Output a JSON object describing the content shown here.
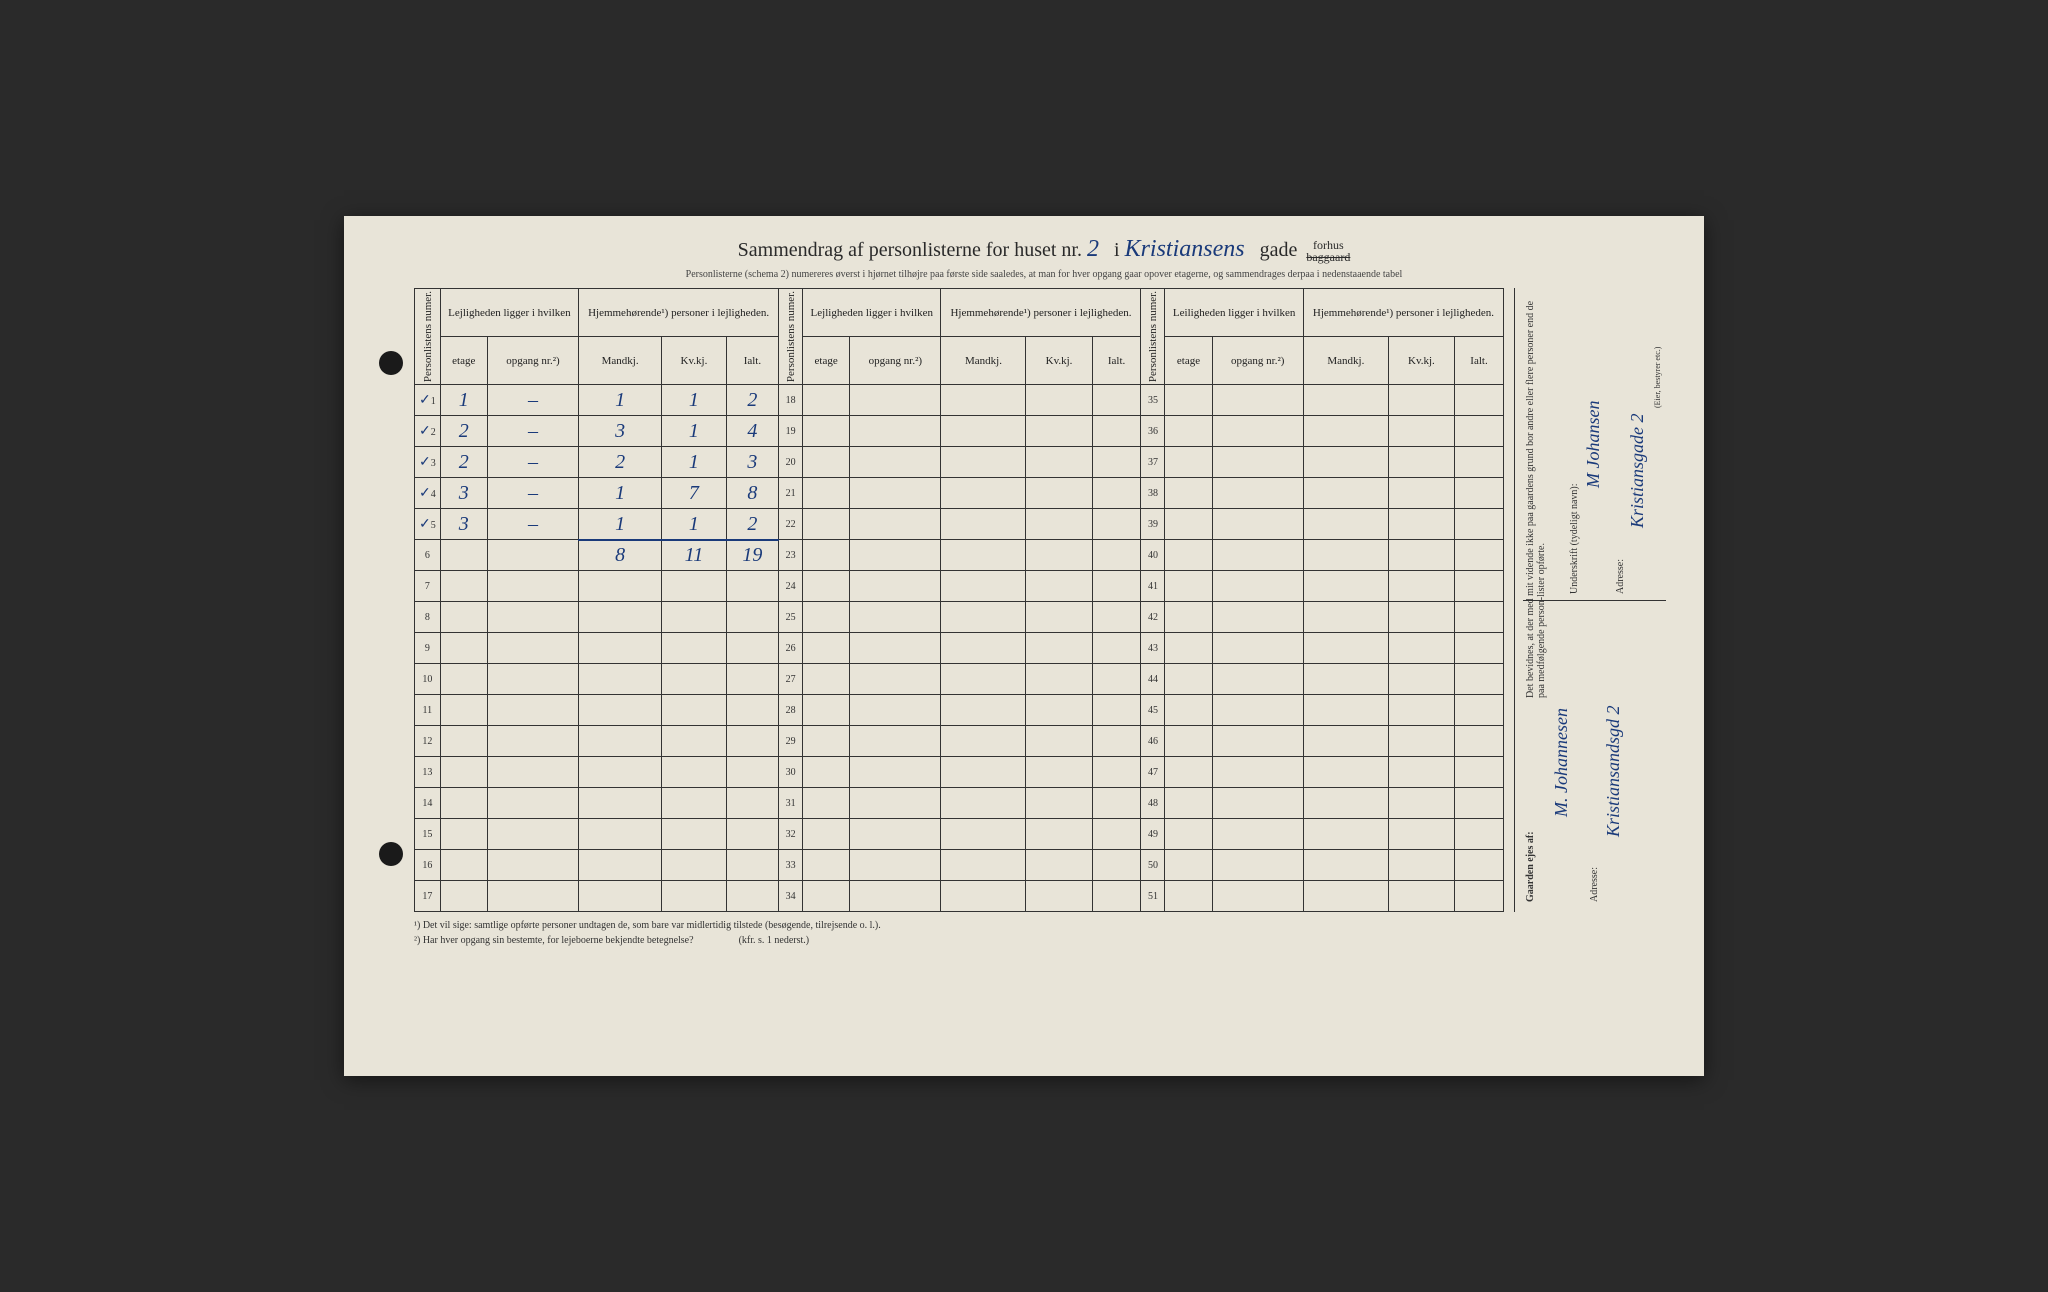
{
  "header": {
    "prefix": "Sammendrag af personlisterne for huset nr.",
    "house_number": "2",
    "middle": "i",
    "street_name": "Kristiansens",
    "suffix": "gade",
    "forhus": "forhus",
    "baggaard": "baggaard"
  },
  "subheader": "Personlisterne (schema 2) numereres øverst i hjørnet tilhøjre paa første side saaledes, at man for hver opgang gaar opover etagerne, og sammendrages derpaa i nedenstaaende tabel",
  "columns": {
    "personlistens": "Personlistens numer.",
    "lejligheden_group": "Lejligheden ligger i hvilken",
    "leiligheden_group": "Leiligheden ligger i hvilken",
    "hjemmehorende_group": "Hjemmehørende¹) personer i lejligheden.",
    "etage": "etage",
    "opgang": "opgang nr.²)",
    "mandkj": "Mandkj.",
    "kvkj": "Kv.kj.",
    "ialt": "Ialt."
  },
  "rows": [
    {
      "num": "1",
      "check": "✓",
      "etage": "1",
      "opgang": "–",
      "m": "1",
      "k": "1",
      "i": "2"
    },
    {
      "num": "2",
      "check": "✓",
      "etage": "2",
      "opgang": "–",
      "m": "3",
      "k": "1",
      "i": "4"
    },
    {
      "num": "3",
      "check": "✓",
      "etage": "2",
      "opgang": "–",
      "m": "2",
      "k": "1",
      "i": "3"
    },
    {
      "num": "4",
      "check": "✓",
      "etage": "3",
      "opgang": "–",
      "m": "1",
      "k": "7",
      "i": "8"
    },
    {
      "num": "5",
      "check": "✓",
      "etage": "3",
      "opgang": "–",
      "m": "1",
      "k": "1",
      "i": "2"
    }
  ],
  "totals": {
    "m": "8",
    "k": "11",
    "i": "19"
  },
  "row_numbers_col1": [
    "1",
    "2",
    "3",
    "4",
    "5",
    "6",
    "7",
    "8",
    "9",
    "10",
    "11",
    "12",
    "13",
    "14",
    "15",
    "16",
    "17"
  ],
  "row_numbers_col2": [
    "18",
    "19",
    "20",
    "21",
    "22",
    "23",
    "24",
    "25",
    "26",
    "27",
    "28",
    "29",
    "30",
    "31",
    "32",
    "33",
    "34"
  ],
  "row_numbers_col3": [
    "35",
    "36",
    "37",
    "38",
    "39",
    "40",
    "41",
    "42",
    "43",
    "44",
    "45",
    "46",
    "47",
    "48",
    "49",
    "50",
    "51"
  ],
  "footnotes": {
    "f1": "¹) Det vil sige: samtlige opførte personer undtagen de, som bare var midlertidig tilstede (besøgende, tilrejsende o. l.).",
    "f2": "²) Har hver opgang sin bestemte, for lejeboerne bekjendte betegnelse?",
    "f2_ref": "(kfr. s. 1 nederst.)"
  },
  "sidebar": {
    "top_printed_1": "Det bevidnes, at der med mit vidende ikke paa gaardens grund bor andre eller flere personer end de paa medfølgende person-lister opførte.",
    "top_printed_2": "Underskrift (tydeligt navn):",
    "top_printed_3": "Adresse:",
    "top_printed_4": "(Eier, bestyrer etc.)",
    "signature": "M Johansen",
    "address_top": "Kristiansgade 2",
    "bottom_label": "Gaarden ejes af:",
    "bottom_name": "M. Johannesen",
    "bottom_addr_label": "Adresse:",
    "bottom_addr": "Kristiansandsgd 2"
  },
  "colors": {
    "paper": "#e8e4d8",
    "ink_print": "#2a2a2a",
    "ink_hand": "#1a3a7a",
    "border": "#333333"
  }
}
